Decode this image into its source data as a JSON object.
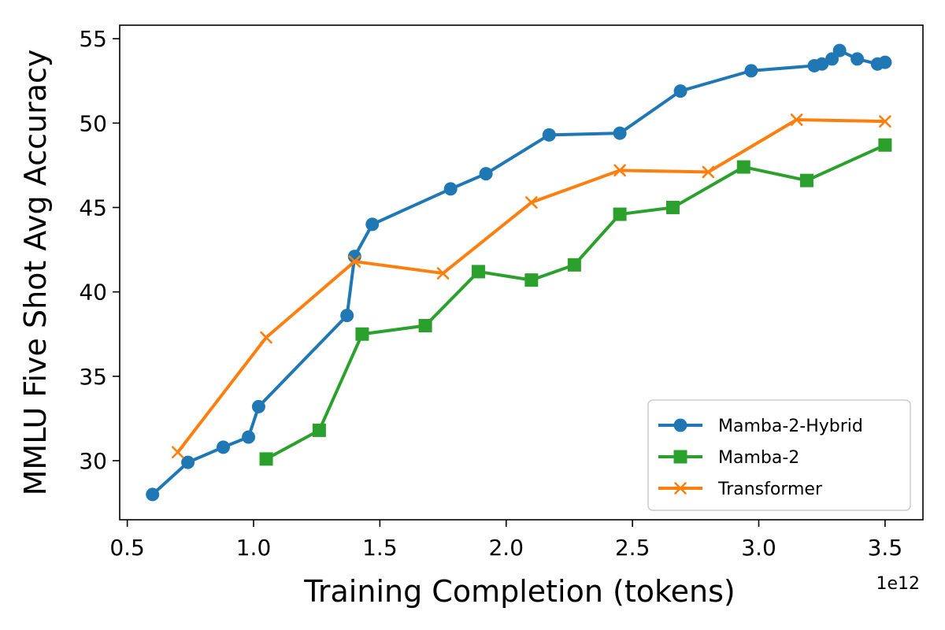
{
  "chart_data": {
    "type": "line",
    "xlabel": "Training Completion (tokens)",
    "ylabel": "MMLU Five Shot Avg Accuracy",
    "x_offset_label": "1e12",
    "xlim": [
      0.47,
      3.65
    ],
    "ylim": [
      26.5,
      55.8
    ],
    "x_ticks": [
      0.5,
      1.0,
      1.5,
      2.0,
      2.5,
      3.0,
      3.5
    ],
    "x_tick_labels": [
      "0.5",
      "1.0",
      "1.5",
      "2.0",
      "2.5",
      "3.0",
      "3.5"
    ],
    "y_ticks": [
      30,
      35,
      40,
      45,
      50,
      55
    ],
    "y_tick_labels": [
      "30",
      "35",
      "40",
      "45",
      "50",
      "55"
    ],
    "grid": false,
    "legend_position": "bottom-right",
    "series": [
      {
        "name": "Mamba-2-Hybrid",
        "color": "#1f77b4",
        "marker": "circle",
        "x": [
          0.6,
          0.74,
          0.88,
          0.98,
          1.02,
          1.37,
          1.4,
          1.47,
          1.78,
          1.92,
          2.17,
          2.45,
          2.69,
          2.97,
          3.22,
          3.25,
          3.29,
          3.32,
          3.39,
          3.47,
          3.5
        ],
        "y": [
          28.0,
          29.9,
          30.8,
          31.4,
          33.2,
          38.6,
          42.1,
          44.0,
          46.1,
          47.0,
          49.3,
          49.4,
          51.9,
          53.1,
          53.4,
          53.5,
          53.8,
          54.3,
          53.8,
          53.5,
          53.6
        ]
      },
      {
        "name": "Mamba-2",
        "color": "#2ca02c",
        "marker": "square",
        "x": [
          1.05,
          1.26,
          1.43,
          1.68,
          1.89,
          2.1,
          2.27,
          2.45,
          2.66,
          2.94,
          3.19,
          3.5
        ],
        "y": [
          30.1,
          31.8,
          37.5,
          38.0,
          41.2,
          40.7,
          41.6,
          44.6,
          45.0,
          47.4,
          46.6,
          48.7
        ]
      },
      {
        "name": "Transformer",
        "color": "#ff7f0e",
        "marker": "x",
        "x": [
          0.7,
          1.05,
          1.4,
          1.75,
          2.1,
          2.45,
          2.8,
          3.15,
          3.5
        ],
        "y": [
          30.5,
          37.3,
          41.8,
          41.1,
          45.3,
          47.2,
          47.1,
          50.2,
          50.1
        ]
      }
    ]
  }
}
